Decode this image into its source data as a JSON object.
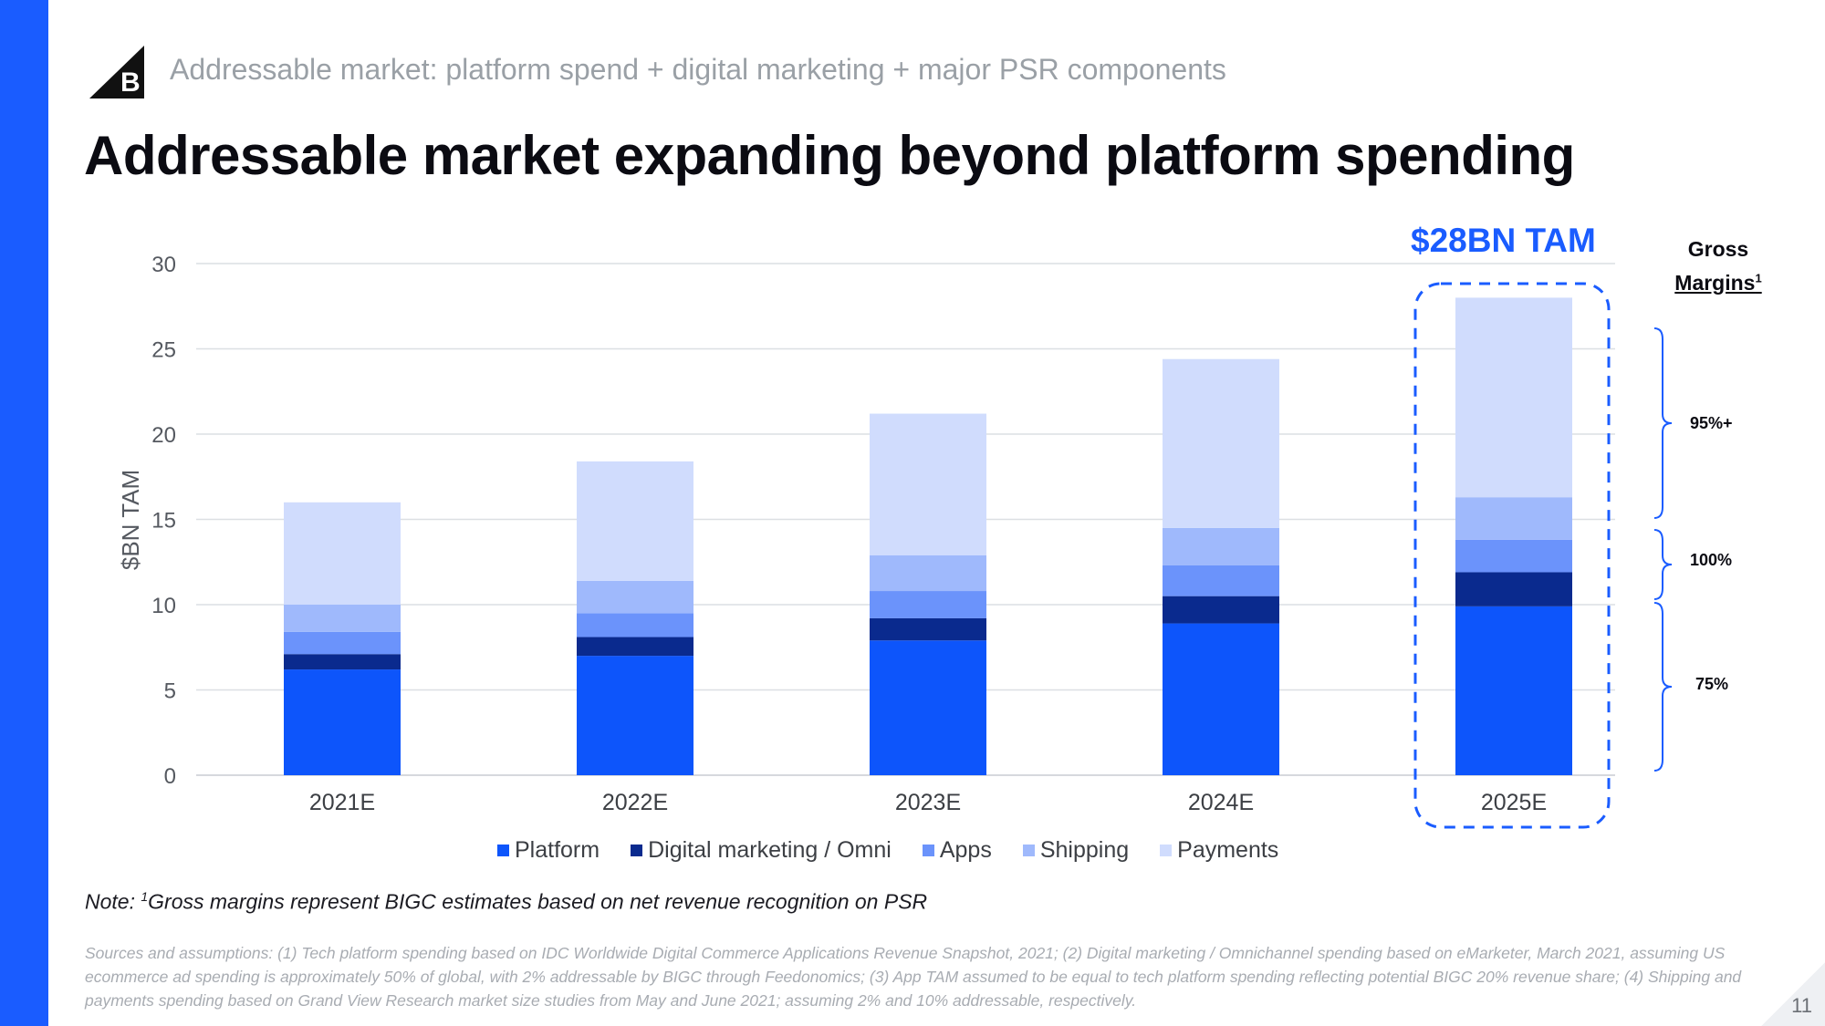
{
  "header": {
    "kicker": "Addressable market: platform spend + digital marketing + major PSR components",
    "title": "Addressable market expanding beyond platform spending",
    "logo_letter": "B"
  },
  "chart_data": {
    "type": "bar",
    "stacked": true,
    "title": "Addressable market expanding beyond platform spending",
    "xlabel": "",
    "ylabel": "$BN TAM",
    "ylim": [
      0,
      30
    ],
    "yticks": [
      0,
      5,
      10,
      15,
      20,
      25,
      30
    ],
    "categories": [
      "2021E",
      "2022E",
      "2023E",
      "2024E",
      "2025E"
    ],
    "series": [
      {
        "name": "Platform",
        "color": "#0d55fb",
        "values": [
          6.2,
          7.0,
          7.9,
          8.9,
          9.9
        ]
      },
      {
        "name": "Digital marketing / Omni",
        "color": "#0a2a8e",
        "values": [
          0.9,
          1.1,
          1.3,
          1.6,
          2.0
        ]
      },
      {
        "name": "Apps",
        "color": "#6b93fb",
        "values": [
          1.3,
          1.4,
          1.6,
          1.8,
          1.9
        ]
      },
      {
        "name": "Shipping",
        "color": "#9fb9fc",
        "values": [
          1.6,
          1.9,
          2.1,
          2.2,
          2.5
        ]
      },
      {
        "name": "Payments",
        "color": "#d0dcfd",
        "values": [
          6.0,
          7.0,
          8.3,
          9.9,
          11.7
        ]
      }
    ],
    "highlight": {
      "category": "2025E",
      "label": "$28BN TAM"
    },
    "legend": "bottom"
  },
  "gross_margins": {
    "title_line1": "Gross",
    "title_line2": "Margins",
    "title_sup": "1",
    "values": [
      "95%+",
      "100%",
      "75%"
    ]
  },
  "note": {
    "prefix": "Note:",
    "sup": "1",
    "text": "Gross margins represent BIGC estimates based on net revenue recognition on PSR"
  },
  "sources": "Sources and assumptions: (1) Tech platform spending based on IDC Worldwide Digital Commerce Applications Revenue Snapshot, 2021; (2) Digital marketing / Omnichannel spending based on eMarketer, March 2021, assuming US ecommerce ad spending is approximately 50% of global, with 2% addressable by BIGC through Feedonomics; (3) App TAM assumed to be equal to tech platform spending reflecting potential BIGC 20% revenue share; (4) Shipping and payments spending based on Grand View Research market size studies from May and June 2021; assuming 2% and 10% addressable, respectively.",
  "page_number": "11",
  "colors": {
    "accent": "#1a5cff"
  }
}
